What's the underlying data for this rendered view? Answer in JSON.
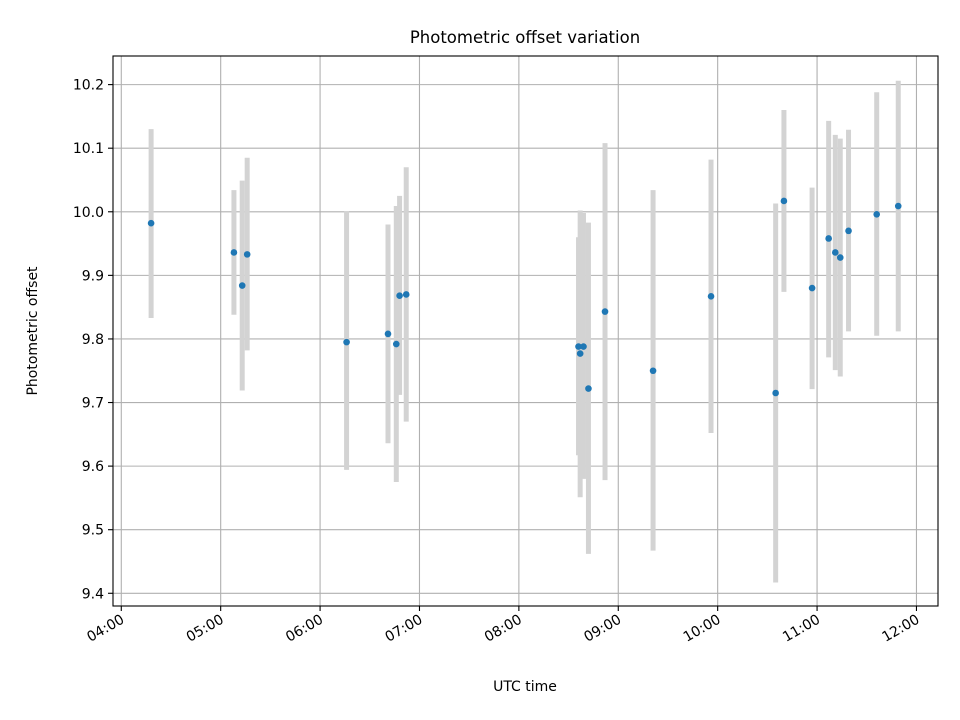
{
  "chart_data": {
    "type": "scatter",
    "title": "Photometric offset variation",
    "xlabel": "UTC time",
    "ylabel": "Photometric offset",
    "xlim": [
      "03:55",
      "12:13"
    ],
    "ylim": [
      9.38,
      10.245
    ],
    "xticks": [
      "04:00",
      "05:00",
      "06:00",
      "07:00",
      "08:00",
      "09:00",
      "10:00",
      "11:00",
      "12:00"
    ],
    "yticks": [
      9.4,
      9.5,
      9.6,
      9.7,
      9.8,
      9.9,
      10.0,
      10.1,
      10.2
    ],
    "ytick_labels": [
      "9.4",
      "9.5",
      "9.6",
      "9.7",
      "9.8",
      "9.9",
      "10.0",
      "10.1",
      "10.2"
    ],
    "grid": true,
    "marker_color": "#1f77b4",
    "errorbar_color": "#d3d3d3",
    "points": [
      {
        "x": "04:18",
        "y": 9.982,
        "ylow": 9.833,
        "yhigh": 10.13
      },
      {
        "x": "05:08",
        "y": 9.936,
        "ylow": 9.838,
        "yhigh": 10.034
      },
      {
        "x": "05:13",
        "y": 9.884,
        "ylow": 9.719,
        "yhigh": 10.049
      },
      {
        "x": "05:16",
        "y": 9.933,
        "ylow": 9.782,
        "yhigh": 10.085
      },
      {
        "x": "06:16",
        "y": 9.795,
        "ylow": 9.594,
        "yhigh": 10.001
      },
      {
        "x": "06:41",
        "y": 9.808,
        "ylow": 9.636,
        "yhigh": 9.98
      },
      {
        "x": "06:46",
        "y": 9.792,
        "ylow": 9.575,
        "yhigh": 10.009
      },
      {
        "x": "06:48",
        "y": 9.868,
        "ylow": 9.712,
        "yhigh": 10.025
      },
      {
        "x": "06:52",
        "y": 9.87,
        "ylow": 9.67,
        "yhigh": 10.07
      },
      {
        "x": "08:36",
        "y": 9.788,
        "ylow": 9.617,
        "yhigh": 9.96
      },
      {
        "x": "08:37",
        "y": 9.777,
        "ylow": 9.551,
        "yhigh": 10.002
      },
      {
        "x": "08:39",
        "y": 9.788,
        "ylow": 9.58,
        "yhigh": 9.998
      },
      {
        "x": "08:42",
        "y": 9.722,
        "ylow": 9.462,
        "yhigh": 9.983
      },
      {
        "x": "08:52",
        "y": 9.843,
        "ylow": 9.578,
        "yhigh": 10.108
      },
      {
        "x": "09:21",
        "y": 9.75,
        "ylow": 9.467,
        "yhigh": 10.034
      },
      {
        "x": "09:56",
        "y": 9.867,
        "ylow": 9.652,
        "yhigh": 10.082
      },
      {
        "x": "10:35",
        "y": 9.715,
        "ylow": 9.417,
        "yhigh": 10.013
      },
      {
        "x": "10:40",
        "y": 10.017,
        "ylow": 9.874,
        "yhigh": 10.16
      },
      {
        "x": "10:57",
        "y": 9.88,
        "ylow": 9.721,
        "yhigh": 10.038
      },
      {
        "x": "11:07",
        "y": 9.958,
        "ylow": 9.771,
        "yhigh": 10.143
      },
      {
        "x": "11:11",
        "y": 9.936,
        "ylow": 9.751,
        "yhigh": 10.121
      },
      {
        "x": "11:14",
        "y": 9.928,
        "ylow": 9.741,
        "yhigh": 10.115
      },
      {
        "x": "11:19",
        "y": 9.97,
        "ylow": 9.812,
        "yhigh": 10.129
      },
      {
        "x": "11:36",
        "y": 9.996,
        "ylow": 9.805,
        "yhigh": 10.188
      },
      {
        "x": "11:49",
        "y": 10.009,
        "ylow": 9.812,
        "yhigh": 10.206
      }
    ]
  }
}
